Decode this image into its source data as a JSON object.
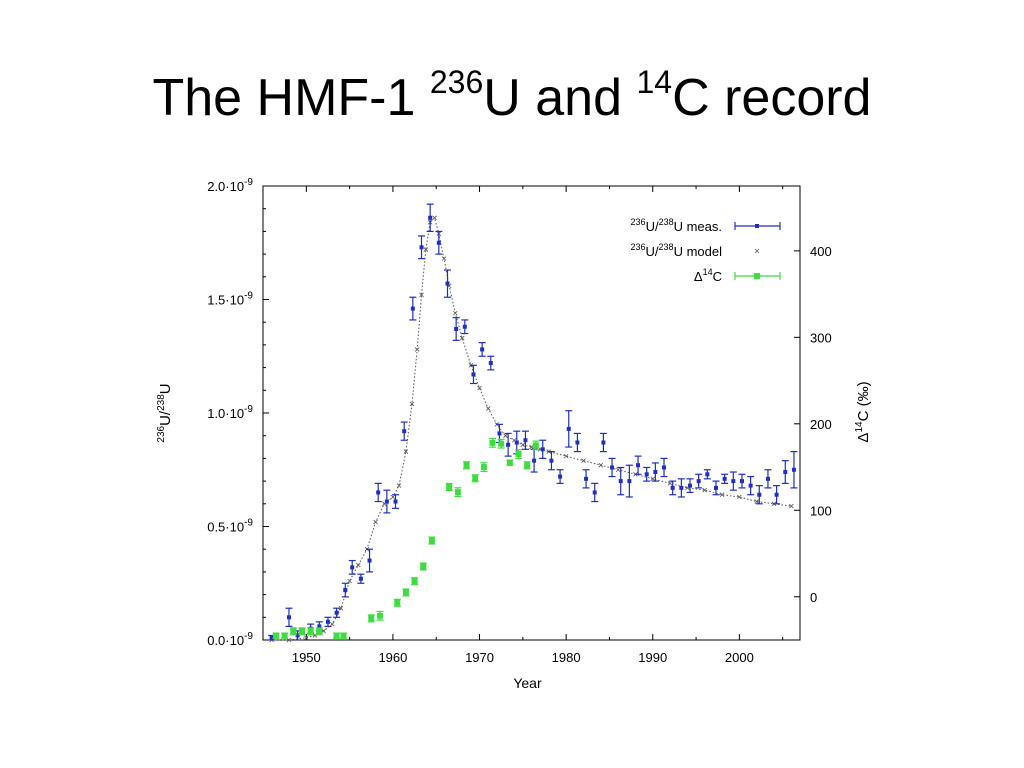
{
  "slide": {
    "title_pre": "The HMF-1 ",
    "title_sup1": "236",
    "title_mid": "U and ",
    "title_sup2": "14",
    "title_post": "C record"
  },
  "colors": {
    "measured": "#1f2fbf",
    "model": "#555555",
    "c14": "#3fdc3f",
    "axis": "#000000"
  },
  "chart_data": {
    "type": "scatter",
    "xlabel": "Year",
    "ylabel_left_parts": [
      "236",
      "U/",
      "238",
      "U"
    ],
    "ylabel_right_parts": [
      "Δ",
      "14",
      "C (‰)"
    ],
    "xlim": [
      1945,
      2007
    ],
    "ylim_left": [
      0,
      2.0
    ],
    "ylim_left_unit": "10^-9",
    "ylim_right": [
      -50,
      475
    ],
    "x_ticks": [
      1950,
      1960,
      1970,
      1980,
      1990,
      2000
    ],
    "y_left_ticks": [
      {
        "value": 0.0,
        "label_main": "0.0·10",
        "label_exp": "-9"
      },
      {
        "value": 0.5,
        "label_main": "0.5·10",
        "label_exp": "-9"
      },
      {
        "value": 1.0,
        "label_main": "1.0·10",
        "label_exp": "-9"
      },
      {
        "value": 1.5,
        "label_main": "1.5·10",
        "label_exp": "-9"
      },
      {
        "value": 2.0,
        "label_main": "2.0·10",
        "label_exp": "-9"
      }
    ],
    "y_right_ticks": [
      0,
      100,
      200,
      300,
      400
    ],
    "legend_position": "top-right",
    "legend": [
      {
        "sup1": "236",
        "text1": "U/",
        "sup2": "238",
        "text2": "U meas."
      },
      {
        "sup1": "236",
        "text1": "U/",
        "sup2": "238",
        "text2": "U model"
      },
      {
        "pre": "Δ",
        "sup1": "14",
        "text1": "C"
      }
    ],
    "series": [
      {
        "name": "236U/238U meas.",
        "axis": "left",
        "marker": "errorbar-point",
        "points": [
          [
            1946.0,
            0.01,
            0.01
          ],
          [
            1948.0,
            0.1,
            0.04
          ],
          [
            1949.0,
            0.02,
            0.02
          ],
          [
            1950.5,
            0.05,
            0.02
          ],
          [
            1951.5,
            0.06,
            0.02
          ],
          [
            1952.5,
            0.08,
            0.02
          ],
          [
            1953.5,
            0.12,
            0.02
          ],
          [
            1954.5,
            0.22,
            0.03
          ],
          [
            1955.3,
            0.32,
            0.03
          ],
          [
            1956.3,
            0.27,
            0.02
          ],
          [
            1957.3,
            0.35,
            0.05
          ],
          [
            1958.3,
            0.65,
            0.04
          ],
          [
            1959.3,
            0.61,
            0.05
          ],
          [
            1960.3,
            0.61,
            0.03
          ],
          [
            1961.3,
            0.92,
            0.04
          ],
          [
            1962.3,
            1.46,
            0.05
          ],
          [
            1963.3,
            1.73,
            0.05
          ],
          [
            1964.3,
            1.86,
            0.06
          ],
          [
            1965.3,
            1.75,
            0.05
          ],
          [
            1966.3,
            1.57,
            0.06
          ],
          [
            1967.3,
            1.37,
            0.05
          ],
          [
            1968.3,
            1.38,
            0.03
          ],
          [
            1969.3,
            1.17,
            0.04
          ],
          [
            1970.3,
            1.28,
            0.03
          ],
          [
            1971.3,
            1.22,
            0.03
          ],
          [
            1972.3,
            0.91,
            0.04
          ],
          [
            1973.3,
            0.86,
            0.05
          ],
          [
            1974.3,
            0.87,
            0.05
          ],
          [
            1975.3,
            0.88,
            0.04
          ],
          [
            1976.3,
            0.79,
            0.05
          ],
          [
            1977.3,
            0.84,
            0.04
          ],
          [
            1978.3,
            0.79,
            0.04
          ],
          [
            1979.3,
            0.72,
            0.03
          ],
          [
            1980.3,
            0.93,
            0.08
          ],
          [
            1981.3,
            0.87,
            0.04
          ],
          [
            1982.3,
            0.71,
            0.04
          ],
          [
            1983.3,
            0.65,
            0.04
          ],
          [
            1984.3,
            0.87,
            0.04
          ],
          [
            1985.3,
            0.76,
            0.04
          ],
          [
            1986.3,
            0.7,
            0.06
          ],
          [
            1987.3,
            0.7,
            0.07
          ],
          [
            1988.3,
            0.77,
            0.04
          ],
          [
            1989.3,
            0.73,
            0.03
          ],
          [
            1990.3,
            0.74,
            0.04
          ],
          [
            1991.3,
            0.76,
            0.04
          ],
          [
            1992.3,
            0.67,
            0.03
          ],
          [
            1993.3,
            0.67,
            0.04
          ],
          [
            1994.3,
            0.68,
            0.03
          ],
          [
            1995.3,
            0.7,
            0.03
          ],
          [
            1996.3,
            0.73,
            0.02
          ],
          [
            1997.3,
            0.67,
            0.03
          ],
          [
            1998.3,
            0.71,
            0.02
          ],
          [
            1999.3,
            0.7,
            0.04
          ],
          [
            2000.3,
            0.7,
            0.03
          ],
          [
            2001.3,
            0.68,
            0.04
          ],
          [
            2002.3,
            0.64,
            0.04
          ],
          [
            2003.3,
            0.71,
            0.04
          ],
          [
            2004.3,
            0.64,
            0.04
          ],
          [
            2005.3,
            0.74,
            0.05
          ],
          [
            2006.3,
            0.75,
            0.08
          ]
        ]
      },
      {
        "name": "236U/238U model",
        "axis": "left",
        "marker": "x",
        "points": [
          [
            1946.0,
            0.0
          ],
          [
            1948.0,
            0.0
          ],
          [
            1950.0,
            0.01
          ],
          [
            1951.0,
            0.02
          ],
          [
            1952.0,
            0.04
          ],
          [
            1953.0,
            0.07
          ],
          [
            1954.0,
            0.14
          ],
          [
            1955.0,
            0.26
          ],
          [
            1956.0,
            0.33
          ],
          [
            1957.0,
            0.4
          ],
          [
            1958.0,
            0.52
          ],
          [
            1959.0,
            0.6
          ],
          [
            1960.0,
            0.63
          ],
          [
            1960.7,
            0.68
          ],
          [
            1961.5,
            0.83
          ],
          [
            1962.2,
            1.04
          ],
          [
            1962.8,
            1.28
          ],
          [
            1963.3,
            1.52
          ],
          [
            1963.8,
            1.72
          ],
          [
            1964.3,
            1.84
          ],
          [
            1964.8,
            1.86
          ],
          [
            1965.3,
            1.79
          ],
          [
            1965.9,
            1.68
          ],
          [
            1966.5,
            1.56
          ],
          [
            1967.2,
            1.44
          ],
          [
            1968.0,
            1.33
          ],
          [
            1969.0,
            1.21
          ],
          [
            1970.0,
            1.11
          ],
          [
            1971.0,
            1.02
          ],
          [
            1972.0,
            0.95
          ],
          [
            1973.0,
            0.9
          ],
          [
            1974.0,
            0.88
          ],
          [
            1975.0,
            0.86
          ],
          [
            1976.0,
            0.85
          ],
          [
            1977.0,
            0.84
          ],
          [
            1978.0,
            0.83
          ],
          [
            1980.0,
            0.81
          ],
          [
            1982.0,
            0.79
          ],
          [
            1984.0,
            0.77
          ],
          [
            1986.0,
            0.75
          ],
          [
            1988.0,
            0.73
          ],
          [
            1990.0,
            0.71
          ],
          [
            1992.0,
            0.69
          ],
          [
            1994.0,
            0.67
          ],
          [
            1996.0,
            0.66
          ],
          [
            1998.0,
            0.64
          ],
          [
            2000.0,
            0.63
          ],
          [
            2002.0,
            0.61
          ],
          [
            2004.0,
            0.6
          ],
          [
            2006.0,
            0.59
          ]
        ]
      },
      {
        "name": "Δ14C",
        "axis": "right",
        "marker": "errorbar-square",
        "points": [
          [
            1946.5,
            -45,
            3
          ],
          [
            1947.5,
            -45,
            3
          ],
          [
            1948.5,
            -40,
            4
          ],
          [
            1949.5,
            -40,
            4
          ],
          [
            1950.5,
            -40,
            4
          ],
          [
            1951.5,
            -40,
            4
          ],
          [
            1953.5,
            -45,
            3
          ],
          [
            1954.3,
            -45,
            3
          ],
          [
            1957.5,
            -25,
            4
          ],
          [
            1958.5,
            -22,
            5
          ],
          [
            1960.5,
            -7,
            4
          ],
          [
            1961.5,
            5,
            4
          ],
          [
            1962.5,
            18,
            4
          ],
          [
            1963.5,
            35,
            4
          ],
          [
            1964.5,
            65,
            4
          ],
          [
            1966.5,
            127,
            4
          ],
          [
            1967.5,
            121,
            5
          ],
          [
            1968.5,
            152,
            4
          ],
          [
            1969.5,
            137,
            4
          ],
          [
            1970.5,
            150,
            5
          ],
          [
            1971.5,
            178,
            5
          ],
          [
            1972.5,
            177,
            5
          ],
          [
            1973.5,
            155,
            3
          ],
          [
            1974.5,
            165,
            5
          ],
          [
            1975.5,
            152,
            4
          ],
          [
            1976.5,
            175,
            5
          ]
        ]
      }
    ]
  }
}
